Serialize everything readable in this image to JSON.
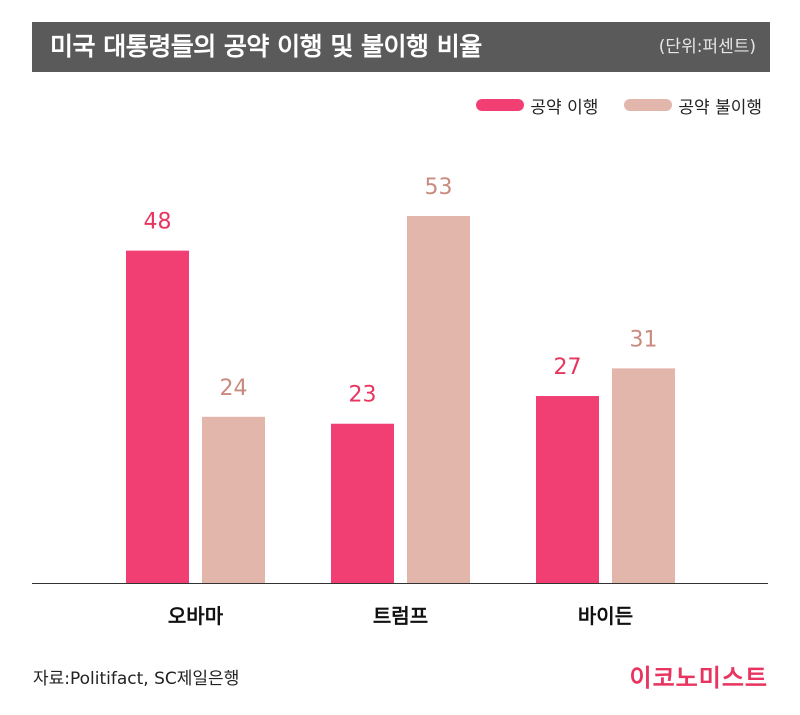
{
  "header": {
    "title": "미국 대통령들의 공약 이행 및 불이행 비율",
    "unit": "(단위:퍼센트)"
  },
  "legend": [
    {
      "label": "공약 이행",
      "color": "#f23f73"
    },
    {
      "label": "공약 불이행",
      "color": "#e2b6ab"
    }
  ],
  "chart_data": {
    "type": "bar",
    "categories": [
      "오바마",
      "트럼프",
      "바이든"
    ],
    "series": [
      {
        "name": "공약 이행",
        "values": [
          48,
          23,
          27
        ],
        "color": "#f23f73",
        "label_color": "#e8345f"
      },
      {
        "name": "공약 불이행",
        "values": [
          24,
          53,
          31
        ],
        "color": "#e2b6ab",
        "label_color": "#c98a7f"
      }
    ],
    "title": "미국 대통령들의 공약 이행 및 불이행 비율",
    "xlabel": "",
    "ylabel": "",
    "ylim": [
      0,
      60
    ],
    "grid": false,
    "legend_position": "top-right"
  },
  "footer": {
    "source": "자료:Politifact, SC제일은행",
    "logo": "이코노미스트"
  }
}
